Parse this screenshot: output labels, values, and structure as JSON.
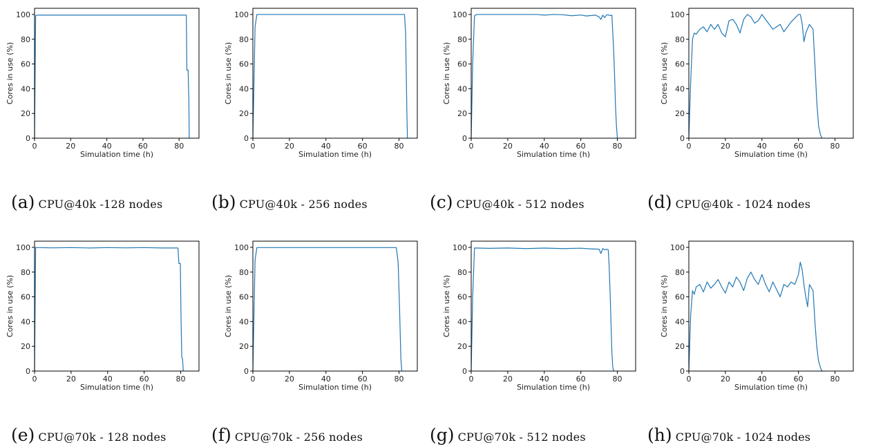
{
  "colors": {
    "series": "#1f77b4",
    "axis": "#000000"
  },
  "chart_data": [
    {
      "id": "a",
      "type": "line",
      "caption_letter": "(a)",
      "caption_text": "CPU@40k -128 nodes",
      "xlabel": "Simulation time (h)",
      "ylabel": "Cores in use (%)",
      "xlim": [
        0,
        91
      ],
      "ylim": [
        0,
        105
      ],
      "xticks": [
        0,
        20,
        40,
        60,
        80
      ],
      "yticks": [
        0,
        20,
        40,
        60,
        80,
        100
      ],
      "grid": false,
      "series": [
        {
          "x": [
            0,
            0.6,
            1.5,
            84.0,
            84.3,
            85.0,
            85.4,
            85.6
          ],
          "y": [
            0,
            99,
            99.5,
            99.5,
            55,
            55,
            30,
            0
          ]
        }
      ]
    },
    {
      "id": "b",
      "type": "line",
      "caption_letter": "(b)",
      "caption_text": "CPU@40k - 256 nodes",
      "xlabel": "Simulation time (h)",
      "ylabel": "Cores in use (%)",
      "xlim": [
        0,
        90
      ],
      "ylim": [
        0,
        105
      ],
      "xticks": [
        0,
        20,
        40,
        60,
        80
      ],
      "yticks": [
        0,
        20,
        40,
        60,
        80,
        100
      ],
      "grid": false,
      "series": [
        {
          "x": [
            0,
            1.2,
            2.2,
            83.0,
            83.6,
            84.3,
            84.6
          ],
          "y": [
            0,
            90,
            100,
            100,
            85,
            20,
            0
          ]
        }
      ]
    },
    {
      "id": "c",
      "type": "line",
      "caption_letter": "(c)",
      "caption_text": "CPU@40k - 512 nodes",
      "xlabel": "Simulation time (h)",
      "ylabel": "Cores in use (%)",
      "xlim": [
        0,
        90
      ],
      "ylim": [
        0,
        105
      ],
      "xticks": [
        0,
        20,
        40,
        60,
        80
      ],
      "yticks": [
        0,
        20,
        40,
        60,
        80,
        100
      ],
      "grid": false,
      "series": [
        {
          "x": [
            0,
            0.8,
            1.8,
            3,
            20,
            36,
            40,
            45,
            50,
            55,
            60,
            63,
            66,
            68,
            70,
            71,
            72,
            73,
            74,
            75,
            76,
            77,
            77.5,
            78,
            78.5,
            79,
            79.5,
            80
          ],
          "y": [
            0,
            60,
            99,
            100,
            100,
            100,
            99.5,
            100,
            99.8,
            99,
            99.6,
            98.8,
            99.2,
            99.5,
            98,
            96,
            99.5,
            97.5,
            99.5,
            99.8,
            99,
            99.5,
            85,
            70,
            50,
            25,
            10,
            0
          ]
        }
      ]
    },
    {
      "id": "d",
      "type": "line",
      "caption_letter": "(d)",
      "caption_text": "CPU@40k - 1024 nodes",
      "xlabel": "Simulation time (h)",
      "ylabel": "Cores in use (%)",
      "xlim": [
        0,
        90
      ],
      "ylim": [
        0,
        105
      ],
      "xticks": [
        0,
        20,
        40,
        60,
        80
      ],
      "yticks": [
        0,
        20,
        40,
        60,
        80,
        100
      ],
      "grid": false,
      "series": [
        {
          "x": [
            0,
            1,
            2,
            3,
            4,
            6,
            8,
            10,
            12,
            14,
            16,
            18,
            20,
            22,
            24,
            26,
            28,
            30,
            32,
            34,
            36,
            38,
            40,
            42,
            44,
            46,
            48,
            50,
            52,
            54,
            56,
            58,
            60,
            61,
            62,
            63,
            64,
            66,
            68,
            69,
            70,
            71,
            72,
            72.5,
            73
          ],
          "y": [
            0,
            45,
            80,
            85,
            84,
            88,
            90,
            86,
            92,
            88,
            92,
            85,
            82,
            95,
            96,
            92,
            85,
            96,
            100,
            98,
            93,
            95,
            100,
            96,
            92,
            88,
            90,
            92,
            86,
            90,
            94,
            97,
            100,
            100,
            93,
            78,
            85,
            92,
            88,
            60,
            30,
            10,
            3,
            1,
            0
          ]
        }
      ]
    },
    {
      "id": "e",
      "type": "line",
      "caption_letter": "(e)",
      "caption_text": "CPU@70k - 128 nodes",
      "xlabel": "Simulation time (h)",
      "ylabel": "Cores in use (%)",
      "xlim": [
        0,
        90
      ],
      "ylim": [
        0,
        105
      ],
      "xticks": [
        0,
        20,
        40,
        60,
        80
      ],
      "yticks": [
        0,
        20,
        40,
        60,
        80,
        100
      ],
      "grid": false,
      "series": [
        {
          "x": [
            0,
            0.6,
            1.5,
            10,
            20,
            30,
            40,
            50,
            60,
            70,
            78.5,
            79.0,
            79.8,
            80.2,
            80.6,
            81.0,
            81.4
          ],
          "y": [
            0,
            100,
            99.8,
            99.6,
            99.8,
            99.5,
            99.8,
            99.6,
            99.8,
            99.5,
            99.5,
            87,
            87,
            40,
            11,
            10,
            0
          ]
        }
      ]
    },
    {
      "id": "f",
      "type": "line",
      "caption_letter": "(f)",
      "caption_text": "CPU@70k - 256 nodes",
      "xlabel": "Simulation time (h)",
      "ylabel": "Cores in use (%)",
      "xlim": [
        0,
        90
      ],
      "ylim": [
        0,
        105
      ],
      "xticks": [
        0,
        20,
        40,
        60,
        80
      ],
      "yticks": [
        0,
        20,
        40,
        60,
        80,
        100
      ],
      "grid": false,
      "series": [
        {
          "x": [
            0,
            1.2,
            2.2,
            78.5,
            79.5,
            80.3,
            81.0,
            81.5
          ],
          "y": [
            0,
            90,
            99.8,
            99.8,
            88,
            50,
            10,
            0
          ]
        }
      ]
    },
    {
      "id": "g",
      "type": "line",
      "caption_letter": "(g)",
      "caption_text": "CPU@70k - 512 nodes",
      "xlabel": "Simulation time (h)",
      "ylabel": "Cores in use (%)",
      "xlim": [
        0,
        90
      ],
      "ylim": [
        0,
        105
      ],
      "xticks": [
        0,
        20,
        40,
        60,
        80
      ],
      "yticks": [
        0,
        20,
        40,
        60,
        80,
        100
      ],
      "grid": false,
      "series": [
        {
          "x": [
            0,
            0.8,
            1.8,
            10,
            20,
            30,
            40,
            50,
            60,
            65,
            70,
            71,
            72,
            73,
            74,
            75,
            75.5,
            76,
            76.5,
            77,
            77.5,
            78
          ],
          "y": [
            0,
            60,
            99.5,
            99.2,
            99.5,
            99.0,
            99.4,
            99.0,
            99.3,
            98.8,
            98.5,
            95,
            99,
            98,
            98.5,
            98,
            85,
            65,
            40,
            15,
            3,
            0
          ]
        }
      ]
    },
    {
      "id": "h",
      "type": "line",
      "caption_letter": "(h)",
      "caption_text": "CPU@70k - 1024 nodes",
      "xlabel": "Simulation time (h)",
      "ylabel": "Cores in use (%)",
      "xlim": [
        0,
        90
      ],
      "ylim": [
        0,
        105
      ],
      "xticks": [
        0,
        20,
        40,
        60,
        80
      ],
      "yticks": [
        0,
        20,
        40,
        60,
        80,
        100
      ],
      "grid": false,
      "series": [
        {
          "x": [
            0,
            1,
            2,
            3,
            4,
            6,
            8,
            10,
            12,
            14,
            16,
            18,
            20,
            22,
            24,
            26,
            28,
            30,
            32,
            34,
            36,
            38,
            40,
            42,
            44,
            46,
            48,
            50,
            52,
            54,
            56,
            58,
            60,
            61,
            62,
            63,
            64,
            65,
            66,
            68,
            69,
            70,
            71,
            72,
            72.5,
            73
          ],
          "y": [
            0,
            45,
            65,
            62,
            68,
            70,
            64,
            72,
            67,
            70,
            74,
            68,
            63,
            72,
            68,
            76,
            72,
            65,
            75,
            80,
            74,
            70,
            78,
            70,
            64,
            72,
            66,
            60,
            70,
            68,
            72,
            70,
            78,
            88,
            82,
            70,
            60,
            52,
            70,
            65,
            40,
            20,
            8,
            3,
            1,
            0
          ]
        }
      ]
    }
  ]
}
